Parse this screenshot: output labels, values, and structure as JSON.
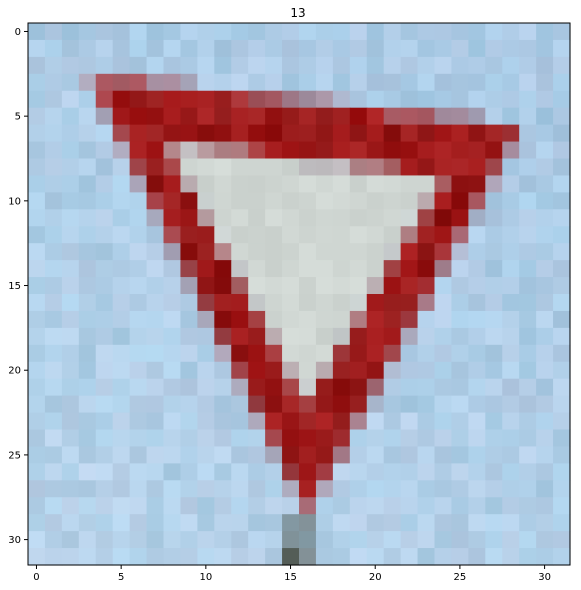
{
  "figure": {
    "title": "13",
    "x_ticks": [
      "0",
      "5",
      "10",
      "15",
      "20",
      "25",
      "30"
    ],
    "y_ticks": [
      "0",
      "5",
      "10",
      "15",
      "20",
      "25",
      "30"
    ],
    "image": {
      "grid_size": 32,
      "background_color": "#a9c9e4",
      "sky_light_color": "#b7d3ea",
      "border_color": "#a5191a",
      "border_dark_color": "#7e1614",
      "inner_color": "#cfd6d2",
      "pole_color": "#4a5047",
      "subject": "yield sign"
    }
  }
}
